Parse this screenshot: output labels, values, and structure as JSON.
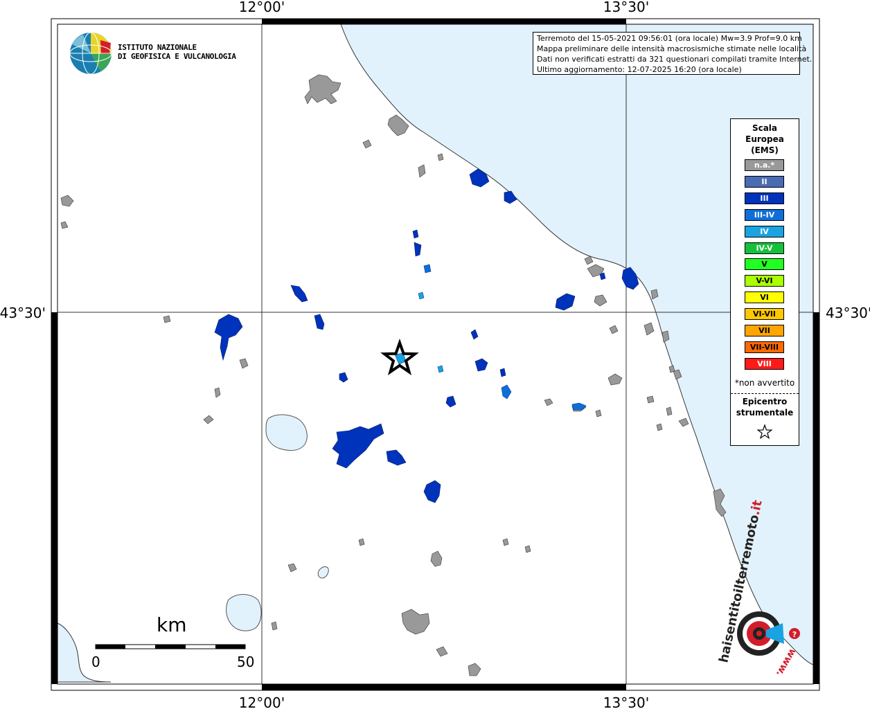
{
  "axes": {
    "lon_labels": [
      "12°00'",
      "13°30'"
    ],
    "lat_labels": [
      "43°30'"
    ]
  },
  "logo": {
    "name_line1": "ISTITUTO NAZIONALE",
    "name_line2": "DI GEOFISICA E VULCANOLOGIA"
  },
  "info": {
    "line1": "Terremoto del 15-05-2021 09:56:01 (ora locale) Mw=3.9 Prof=9.0 km",
    "line2": "Mappa preliminare delle intensità macrosismiche stimate nelle località",
    "line3": "Dati non verificati estratti da 321 questionari compilati tramite Internet.",
    "line4": "Ultimo aggiornamento: 12-07-2025 16:20 (ora locale)"
  },
  "legend": {
    "title_line1": "Scala",
    "title_line2": "Europea",
    "title_line3": "(EMS)",
    "items": [
      {
        "label": "n.a.*",
        "color": "#999999"
      },
      {
        "label": "II",
        "color": "#4a6cb3"
      },
      {
        "label": "III",
        "color": "#0033bb"
      },
      {
        "label": "III-IV",
        "color": "#0f6fd9"
      },
      {
        "label": "IV",
        "color": "#1aa3e0"
      },
      {
        "label": "IV-V",
        "color": "#15c13a"
      },
      {
        "label": "V",
        "color": "#22ff22"
      },
      {
        "label": "V-VI",
        "color": "#aaff00"
      },
      {
        "label": "VI",
        "color": "#ffff00"
      },
      {
        "label": "VI-VII",
        "color": "#ffc800"
      },
      {
        "label": "VII",
        "color": "#ffa500"
      },
      {
        "label": "VII-VIII",
        "color": "#ff6a00"
      },
      {
        "label": "VIII",
        "color": "#ff1a1a"
      }
    ],
    "note": "*non avvertito",
    "epi_line1": "Epicentro",
    "epi_line2": "strumentale"
  },
  "scale_bar": {
    "unit": "km",
    "min": "0",
    "max": "50"
  },
  "colors": {
    "sea": "#e1f2fc",
    "lake": "#e1f2fc",
    "na": "#999999",
    "ii": "#4a6cb3",
    "iii": "#0033bb",
    "iii_iv": "#0f6fd9",
    "iv": "#1aa3e0"
  },
  "badge": {
    "text_main": "haisentitoilterremoto",
    "text_it": ".it",
    "text_www": "www."
  }
}
